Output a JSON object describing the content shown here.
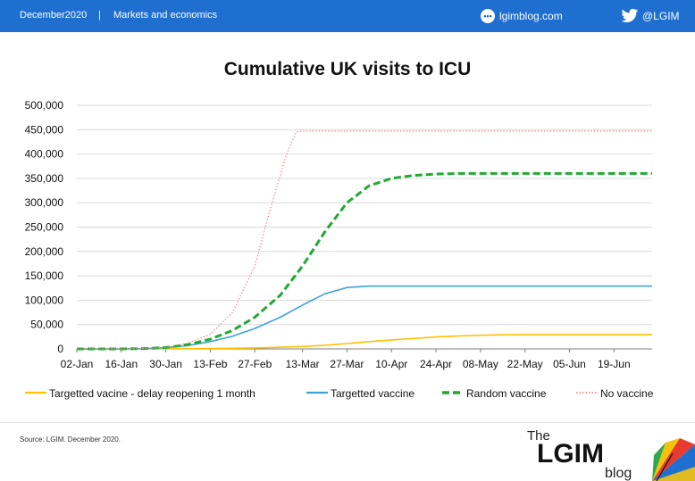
{
  "header": {
    "date": "December2020",
    "separator": "|",
    "category": "Markets and economics",
    "blog_icon": "chat-bubble-icon",
    "blog_url": "lgimblog.com",
    "twitter_icon": "twitter-bird-icon",
    "twitter_handle": "@LGIM",
    "bar_color": "#1f6fd1"
  },
  "footer": {
    "source": "Source: LGIM. December 2020.",
    "logo_the": "The",
    "logo_name": "LGIM",
    "logo_blog": "blog"
  },
  "chart_data": {
    "type": "line",
    "title": "Cumulative UK visits to ICU",
    "ylim": [
      0,
      500000
    ],
    "yticks": [
      0,
      50000,
      100000,
      150000,
      200000,
      250000,
      300000,
      350000,
      400000,
      450000,
      500000
    ],
    "ytick_labels": [
      "0",
      "50,000",
      "100,000",
      "150,000",
      "200,000",
      "250,000",
      "300,000",
      "350,000",
      "400,000",
      "450,000",
      "500,000"
    ],
    "xlim": [
      "2020-01-02",
      "2020-07-01"
    ],
    "xtick_dates": [
      "2020-01-02",
      "2020-01-16",
      "2020-01-30",
      "2020-02-13",
      "2020-02-27",
      "2020-03-13",
      "2020-03-27",
      "2020-04-10",
      "2020-04-24",
      "2020-05-08",
      "2020-05-22",
      "2020-06-05",
      "2020-06-19"
    ],
    "xtick_labels": [
      "02-Jan",
      "16-Jan",
      "30-Jan",
      "13-Feb",
      "27-Feb",
      "13-Mar",
      "27-Mar",
      "10-Apr",
      "24-Apr",
      "08-May",
      "22-May",
      "05-Jun",
      "19-Jun"
    ],
    "grid": "horizontal",
    "legend_position": "bottom",
    "series": [
      {
        "name": "Targetted vacine - delay reopening 1 month",
        "color": "#ffc000",
        "style": "solid",
        "points": [
          [
            "2020-01-02",
            0
          ],
          [
            "2020-01-16",
            0
          ],
          [
            "2020-01-30",
            300
          ],
          [
            "2020-02-13",
            1000
          ],
          [
            "2020-02-27",
            2000
          ],
          [
            "2020-03-06",
            3500
          ],
          [
            "2020-03-13",
            5000
          ],
          [
            "2020-03-20",
            7500
          ],
          [
            "2020-03-27",
            11000
          ],
          [
            "2020-04-03",
            15000
          ],
          [
            "2020-04-10",
            18500
          ],
          [
            "2020-04-17",
            21500
          ],
          [
            "2020-04-24",
            24500
          ],
          [
            "2020-05-01",
            26500
          ],
          [
            "2020-05-08",
            28000
          ],
          [
            "2020-05-15",
            29000
          ],
          [
            "2020-05-22",
            29500
          ],
          [
            "2020-06-05",
            29500
          ],
          [
            "2020-07-01",
            29500
          ]
        ]
      },
      {
        "name": "Targetted vaccine",
        "color": "#3ea3d5",
        "style": "solid",
        "points": [
          [
            "2020-01-02",
            0
          ],
          [
            "2020-01-16",
            0
          ],
          [
            "2020-01-23",
            500
          ],
          [
            "2020-01-30",
            2500
          ],
          [
            "2020-02-06",
            7000
          ],
          [
            "2020-02-13",
            15000
          ],
          [
            "2020-02-20",
            26000
          ],
          [
            "2020-02-27",
            42000
          ],
          [
            "2020-03-06",
            65000
          ],
          [
            "2020-03-13",
            90000
          ],
          [
            "2020-03-20",
            113000
          ],
          [
            "2020-03-27",
            126000
          ],
          [
            "2020-04-03",
            129000
          ],
          [
            "2020-04-10",
            129000
          ],
          [
            "2020-07-01",
            129000
          ]
        ]
      },
      {
        "name": "Random vaccine",
        "color": "#22aa33",
        "style": "dashed",
        "points": [
          [
            "2020-01-02",
            0
          ],
          [
            "2020-01-16",
            0
          ],
          [
            "2020-01-23",
            500
          ],
          [
            "2020-01-30",
            3000
          ],
          [
            "2020-02-06",
            9000
          ],
          [
            "2020-02-13",
            20000
          ],
          [
            "2020-02-20",
            38000
          ],
          [
            "2020-02-27",
            65000
          ],
          [
            "2020-03-06",
            110000
          ],
          [
            "2020-03-13",
            170000
          ],
          [
            "2020-03-20",
            240000
          ],
          [
            "2020-03-27",
            300000
          ],
          [
            "2020-04-03",
            335000
          ],
          [
            "2020-04-10",
            350000
          ],
          [
            "2020-04-17",
            356000
          ],
          [
            "2020-04-24",
            359000
          ],
          [
            "2020-05-01",
            360000
          ],
          [
            "2020-07-01",
            360000
          ]
        ]
      },
      {
        "name": "No vaccine",
        "color": "#f08a8a",
        "style": "dotted",
        "points": [
          [
            "2020-01-02",
            0
          ],
          [
            "2020-01-16",
            0
          ],
          [
            "2020-01-23",
            500
          ],
          [
            "2020-01-30",
            3000
          ],
          [
            "2020-02-06",
            12000
          ],
          [
            "2020-02-13",
            30000
          ],
          [
            "2020-02-20",
            75000
          ],
          [
            "2020-02-27",
            170000
          ],
          [
            "2020-03-03",
            290000
          ],
          [
            "2020-03-08",
            400000
          ],
          [
            "2020-03-11",
            445000
          ],
          [
            "2020-03-13",
            447000
          ],
          [
            "2020-07-01",
            447000
          ]
        ]
      }
    ]
  }
}
